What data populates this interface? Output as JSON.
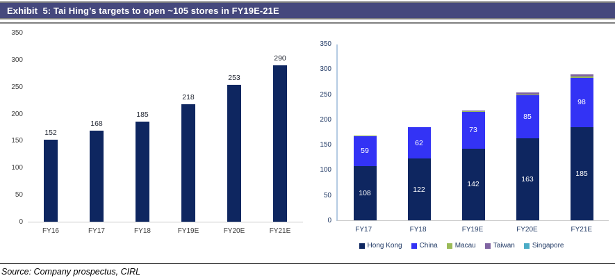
{
  "header": {
    "title": "Exhibit  5: Tai Hing’s targets to open ~105 stores in FY19E-21E"
  },
  "source": {
    "text": "Source: Company prospectus, CIRL"
  },
  "colors": {
    "title_bar_bg": "#45487D",
    "rule_gray": "#7F7F7F",
    "hong_kong_navy": "#0E2660",
    "china_blue": "#3333F5",
    "macau_green": "#9BBB59",
    "taiwan_purple": "#8064A2",
    "singapore_teal": "#4BACC6",
    "left_axis_line": "#C9C9C9",
    "right_axis_line": "#B5CBE3",
    "tick_label_left": "#404040",
    "tick_label_right": "#1F3864"
  },
  "chart_data": [
    {
      "type": "bar",
      "title": "",
      "categories": [
        "FY16",
        "FY17",
        "FY18",
        "FY19E",
        "FY20E",
        "FY21E"
      ],
      "values": [
        152,
        168,
        185,
        218,
        253,
        290
      ],
      "data_labels": [
        "152",
        "168",
        "185",
        "218",
        "253",
        "290"
      ],
      "xlabel": "",
      "ylabel": "",
      "ylim": [
        0,
        350
      ],
      "ytick_step": 50,
      "grid": false,
      "legend_position": "none",
      "bar_color": "#0E2660",
      "tick_color": "#404040",
      "axis": "bottom-only"
    },
    {
      "type": "bar",
      "stacked": true,
      "title": "",
      "categories": [
        "FY17",
        "FY18",
        "FY19E",
        "FY20E",
        "FY21E"
      ],
      "series": [
        {
          "name": "Hong Kong",
          "color": "#0E2660",
          "values": [
            108,
            122,
            142,
            163,
            185
          ],
          "labeled": true
        },
        {
          "name": "China",
          "color": "#3333F5",
          "values": [
            59,
            62,
            73,
            85,
            98
          ],
          "labeled": true
        },
        {
          "name": "Macau",
          "color": "#9BBB59",
          "values": [
            1,
            1,
            1,
            2,
            2
          ],
          "labeled": false
        },
        {
          "name": "Taiwan",
          "color": "#8064A2",
          "values": [
            0,
            0,
            2,
            3,
            4
          ],
          "labeled": false
        },
        {
          "name": "Singapore",
          "color": "#4BACC6",
          "values": [
            0,
            0,
            0,
            0,
            1
          ],
          "labeled": false
        }
      ],
      "xlabel": "",
      "ylabel": "",
      "ylim": [
        0,
        350
      ],
      "ytick_step": 50,
      "grid": false,
      "legend_position": "bottom",
      "tick_color": "#1F3864",
      "axis": "left-and-bottom"
    }
  ]
}
